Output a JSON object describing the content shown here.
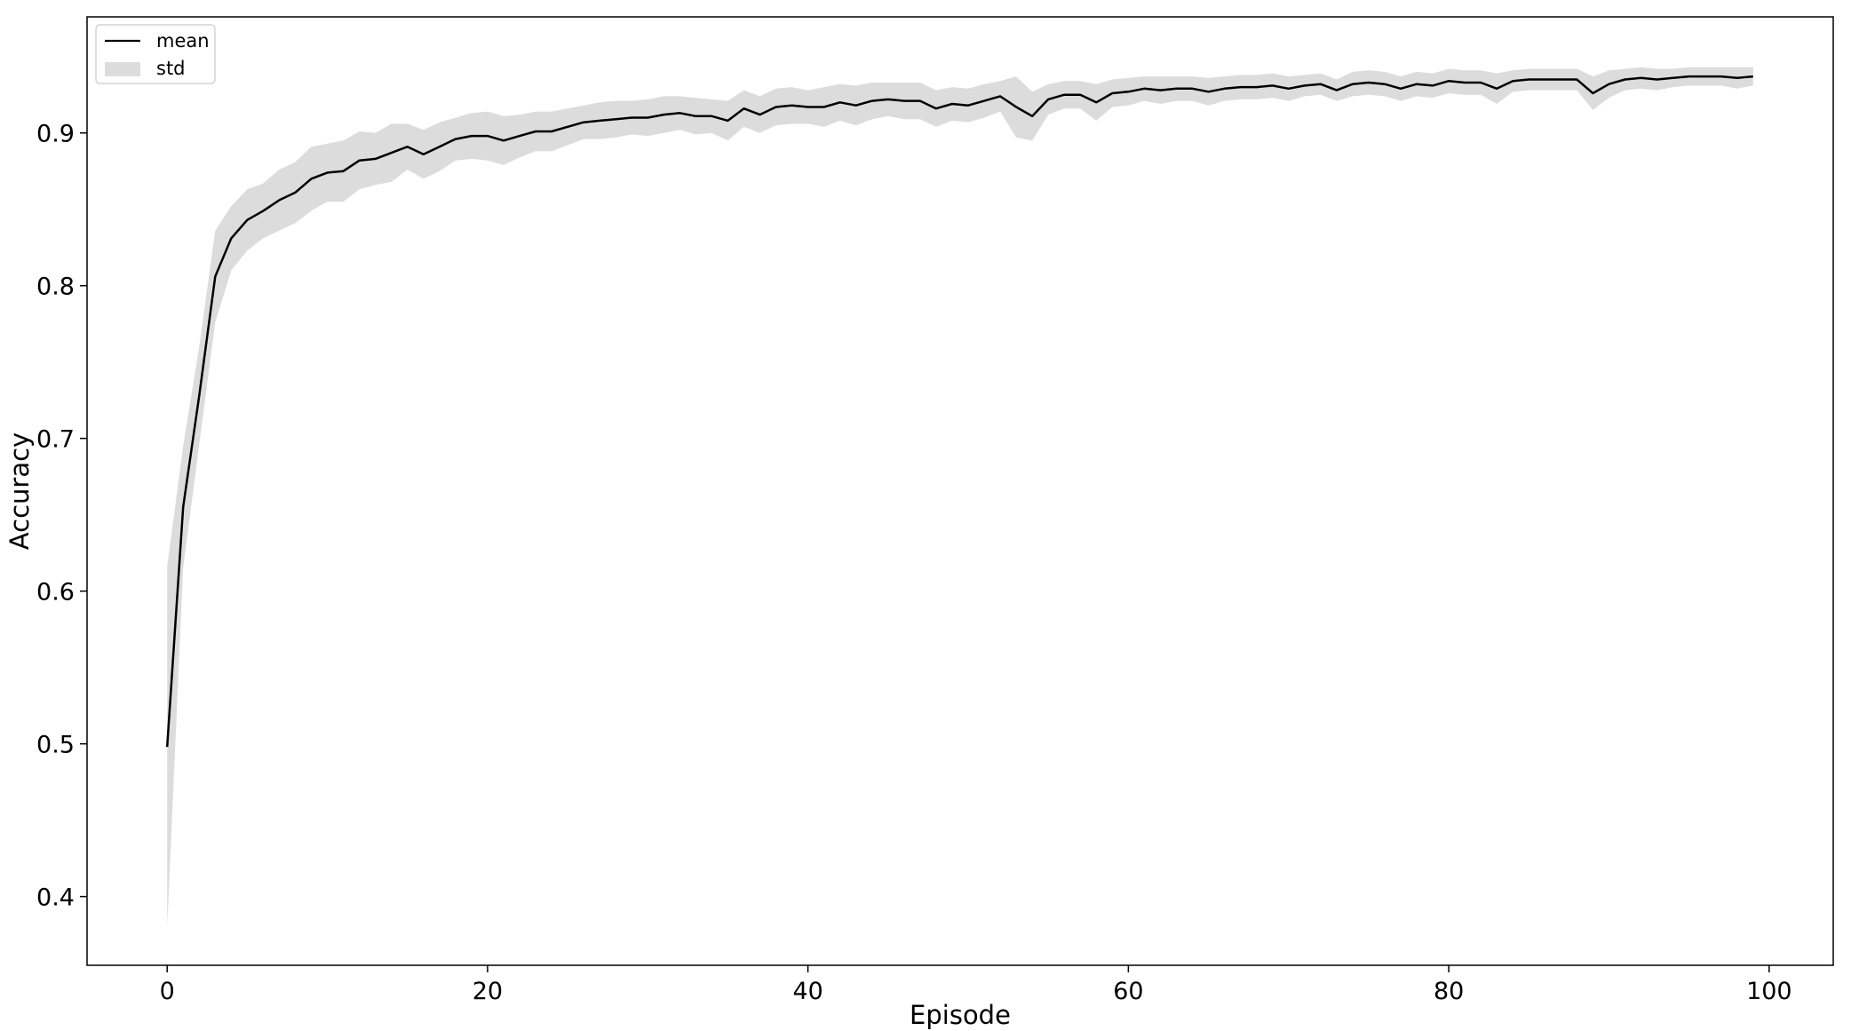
{
  "chart_data": {
    "type": "line",
    "title": "",
    "xlabel": "Episode",
    "ylabel": "Accuracy",
    "xlim": [
      -5,
      104
    ],
    "ylim": [
      0.355,
      0.976
    ],
    "xticks": [
      0,
      20,
      40,
      60,
      80,
      100
    ],
    "yticks": [
      0.4,
      0.5,
      0.6,
      0.7,
      0.8,
      0.9
    ],
    "xtick_labels": [
      "0",
      "20",
      "40",
      "60",
      "80",
      "100"
    ],
    "ytick_labels": [
      "0.4",
      "0.5",
      "0.6",
      "0.7",
      "0.8",
      "0.9"
    ],
    "grid": false,
    "legend": {
      "placement": "top-left",
      "entries": [
        {
          "label": "mean",
          "kind": "line",
          "color": "#000000"
        },
        {
          "label": "std",
          "kind": "band",
          "color": "#dcdcdc"
        }
      ]
    },
    "colors": {
      "mean": "#000000",
      "std_band": "#dcdcdc"
    },
    "series": [
      {
        "name": "mean",
        "x": [
          0,
          1,
          2,
          3,
          4,
          5,
          6,
          7,
          8,
          9,
          10,
          11,
          12,
          13,
          14,
          15,
          16,
          17,
          18,
          19,
          20,
          21,
          22,
          23,
          24,
          25,
          26,
          27,
          28,
          29,
          30,
          31,
          32,
          33,
          34,
          35,
          36,
          37,
          38,
          39,
          40,
          41,
          42,
          43,
          44,
          45,
          46,
          47,
          48,
          49,
          50,
          51,
          52,
          53,
          54,
          55,
          56,
          57,
          58,
          59,
          60,
          61,
          62,
          63,
          64,
          65,
          66,
          67,
          68,
          69,
          70,
          71,
          72,
          73,
          74,
          75,
          76,
          77,
          78,
          79,
          80,
          81,
          82,
          83,
          84,
          85,
          86,
          87,
          88,
          89,
          90,
          91,
          92,
          93,
          94,
          95,
          96,
          97,
          98,
          99
        ],
        "values": [
          0.498,
          0.655,
          0.728,
          0.806,
          0.831,
          0.843,
          0.849,
          0.856,
          0.861,
          0.87,
          0.874,
          0.875,
          0.882,
          0.883,
          0.887,
          0.891,
          0.886,
          0.891,
          0.896,
          0.898,
          0.898,
          0.895,
          0.898,
          0.901,
          0.901,
          0.904,
          0.907,
          0.908,
          0.909,
          0.91,
          0.91,
          0.912,
          0.913,
          0.911,
          0.911,
          0.908,
          0.916,
          0.912,
          0.917,
          0.918,
          0.917,
          0.917,
          0.92,
          0.918,
          0.921,
          0.922,
          0.921,
          0.921,
          0.916,
          0.919,
          0.918,
          0.921,
          0.924,
          0.917,
          0.911,
          0.922,
          0.925,
          0.925,
          0.92,
          0.926,
          0.927,
          0.929,
          0.928,
          0.929,
          0.929,
          0.927,
          0.929,
          0.93,
          0.93,
          0.931,
          0.929,
          0.931,
          0.932,
          0.928,
          0.932,
          0.933,
          0.932,
          0.929,
          0.932,
          0.931,
          0.934,
          0.933,
          0.933,
          0.929,
          0.934,
          0.935,
          0.935,
          0.935,
          0.935,
          0.926,
          0.932,
          0.935,
          0.936,
          0.935,
          0.936,
          0.937,
          0.937,
          0.937,
          0.936,
          0.937
        ]
      },
      {
        "name": "std",
        "x": [
          0,
          1,
          2,
          3,
          4,
          5,
          6,
          7,
          8,
          9,
          10,
          11,
          12,
          13,
          14,
          15,
          16,
          17,
          18,
          19,
          20,
          21,
          22,
          23,
          24,
          25,
          26,
          27,
          28,
          29,
          30,
          31,
          32,
          33,
          34,
          35,
          36,
          37,
          38,
          39,
          40,
          41,
          42,
          43,
          44,
          45,
          46,
          47,
          48,
          49,
          50,
          51,
          52,
          53,
          54,
          55,
          56,
          57,
          58,
          59,
          60,
          61,
          62,
          63,
          64,
          65,
          66,
          67,
          68,
          69,
          70,
          71,
          72,
          73,
          74,
          75,
          76,
          77,
          78,
          79,
          80,
          81,
          82,
          83,
          84,
          85,
          86,
          87,
          88,
          89,
          90,
          91,
          92,
          93,
          94,
          95,
          96,
          97,
          98,
          99
        ],
        "upper": [
          0.616,
          0.695,
          0.76,
          0.836,
          0.852,
          0.863,
          0.867,
          0.876,
          0.881,
          0.891,
          0.893,
          0.895,
          0.901,
          0.9,
          0.906,
          0.906,
          0.902,
          0.907,
          0.91,
          0.913,
          0.914,
          0.911,
          0.912,
          0.914,
          0.914,
          0.916,
          0.918,
          0.92,
          0.921,
          0.921,
          0.922,
          0.924,
          0.924,
          0.923,
          0.922,
          0.921,
          0.928,
          0.924,
          0.929,
          0.93,
          0.928,
          0.93,
          0.932,
          0.931,
          0.933,
          0.933,
          0.933,
          0.933,
          0.928,
          0.93,
          0.929,
          0.932,
          0.934,
          0.937,
          0.927,
          0.932,
          0.934,
          0.934,
          0.932,
          0.935,
          0.936,
          0.937,
          0.937,
          0.937,
          0.937,
          0.936,
          0.937,
          0.938,
          0.938,
          0.939,
          0.937,
          0.938,
          0.939,
          0.935,
          0.94,
          0.941,
          0.94,
          0.937,
          0.94,
          0.939,
          0.942,
          0.941,
          0.941,
          0.939,
          0.941,
          0.942,
          0.942,
          0.942,
          0.942,
          0.937,
          0.941,
          0.942,
          0.943,
          0.942,
          0.942,
          0.943,
          0.943,
          0.943,
          0.943,
          0.943
        ],
        "lower": [
          0.38,
          0.615,
          0.696,
          0.776,
          0.81,
          0.823,
          0.831,
          0.836,
          0.841,
          0.849,
          0.855,
          0.855,
          0.863,
          0.866,
          0.868,
          0.876,
          0.87,
          0.875,
          0.882,
          0.883,
          0.882,
          0.879,
          0.884,
          0.888,
          0.888,
          0.892,
          0.896,
          0.896,
          0.897,
          0.899,
          0.898,
          0.9,
          0.902,
          0.899,
          0.9,
          0.895,
          0.904,
          0.9,
          0.905,
          0.906,
          0.906,
          0.904,
          0.908,
          0.905,
          0.909,
          0.911,
          0.909,
          0.909,
          0.904,
          0.908,
          0.907,
          0.91,
          0.914,
          0.897,
          0.895,
          0.912,
          0.916,
          0.916,
          0.908,
          0.917,
          0.918,
          0.921,
          0.919,
          0.921,
          0.921,
          0.918,
          0.921,
          0.922,
          0.922,
          0.923,
          0.921,
          0.924,
          0.925,
          0.921,
          0.924,
          0.925,
          0.924,
          0.921,
          0.924,
          0.923,
          0.926,
          0.925,
          0.925,
          0.919,
          0.927,
          0.928,
          0.928,
          0.928,
          0.928,
          0.915,
          0.923,
          0.928,
          0.929,
          0.928,
          0.93,
          0.931,
          0.931,
          0.931,
          0.929,
          0.931
        ]
      }
    ]
  }
}
